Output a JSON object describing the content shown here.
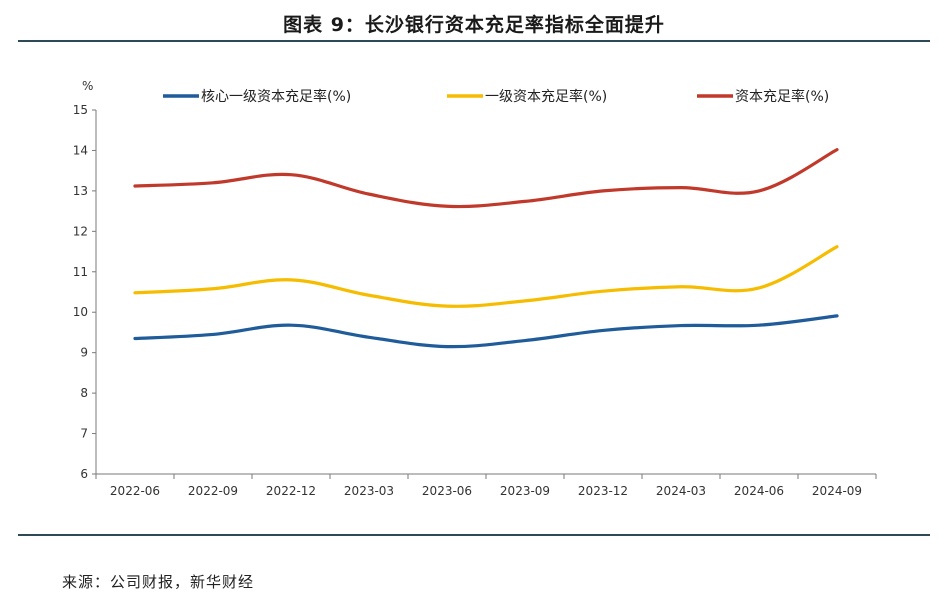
{
  "figure_title": "图表 9：长沙银行资本充足率指标全面提升",
  "source_note": "来源：公司财报，新华财经",
  "chart_data": {
    "type": "line",
    "ylabel": "%",
    "ylim": [
      6,
      15
    ],
    "yticks": [
      6,
      7,
      8,
      9,
      10,
      11,
      12,
      13,
      14,
      15
    ],
    "categories": [
      "2022-06",
      "2022-09",
      "2022-12",
      "2023-03",
      "2023-06",
      "2023-09",
      "2023-12",
      "2024-03",
      "2024-06",
      "2024-09"
    ],
    "series": [
      {
        "name": "核心一级资本充足率(%)",
        "color": "#1f5c99",
        "values": [
          9.35,
          9.45,
          9.68,
          9.38,
          9.15,
          9.3,
          9.55,
          9.67,
          9.68,
          9.91
        ]
      },
      {
        "name": "一级资本充足率(%)",
        "color": "#f5bc00",
        "values": [
          10.48,
          10.58,
          10.8,
          10.42,
          10.15,
          10.28,
          10.52,
          10.63,
          10.6,
          11.62
        ]
      },
      {
        "name": "资本充足率(%)",
        "color": "#c0392b",
        "values": [
          13.12,
          13.2,
          13.4,
          12.92,
          12.62,
          12.74,
          13.0,
          13.08,
          13.0,
          14.02
        ]
      }
    ]
  }
}
